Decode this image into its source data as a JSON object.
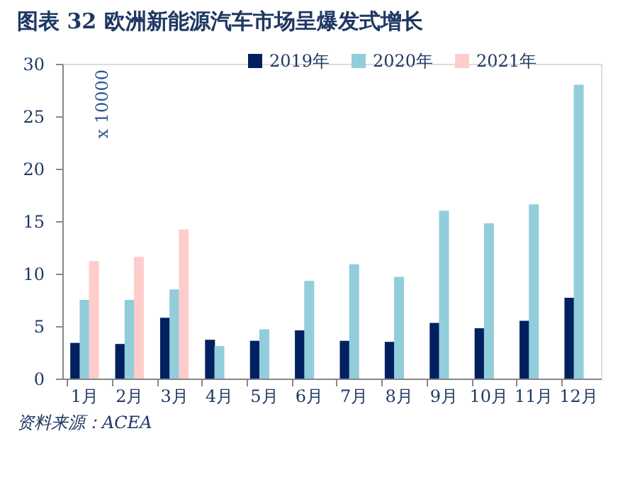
{
  "chart_data": {
    "type": "bar",
    "title": "图表 32 欧洲新能源汽车市场呈爆发式增长",
    "categories": [
      "1月",
      "2月",
      "3月",
      "4月",
      "5月",
      "6月",
      "7月",
      "8月",
      "9月",
      "10月",
      "11月",
      "12月"
    ],
    "series": [
      {
        "name": "2019年",
        "color": "#002060",
        "values": [
          3.4,
          3.3,
          5.8,
          3.7,
          3.6,
          4.6,
          3.6,
          3.5,
          5.3,
          4.8,
          5.5,
          7.7
        ]
      },
      {
        "name": "2020年",
        "color": "#92cddc",
        "values": [
          7.5,
          7.5,
          8.5,
          3.1,
          4.7,
          9.3,
          10.9,
          9.7,
          16.0,
          14.8,
          16.6,
          28.0
        ]
      },
      {
        "name": "2021年",
        "color": "#ffcccc",
        "values": [
          11.2,
          11.6,
          14.2,
          null,
          null,
          null,
          null,
          null,
          null,
          null,
          null,
          null
        ]
      }
    ],
    "ylim": [
      0,
      30
    ],
    "yticks": [
      0,
      5,
      10,
      15,
      20,
      25,
      30
    ],
    "grid": false,
    "legend": "top",
    "annotations": [
      "x 10000",
      "资料来源：ACEA"
    ]
  }
}
